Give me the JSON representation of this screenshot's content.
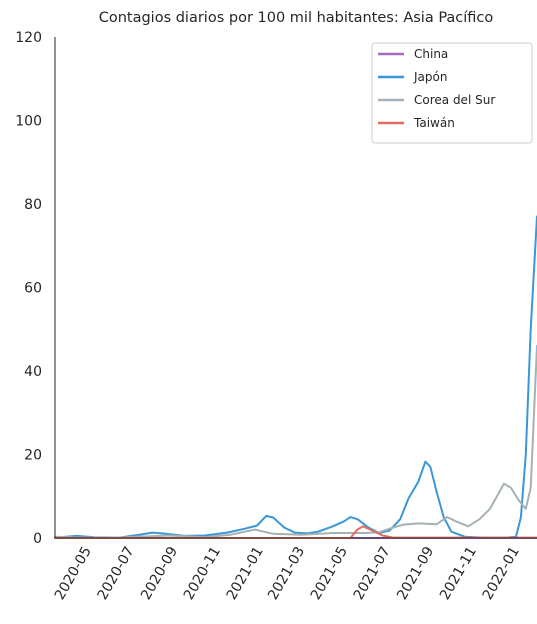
{
  "chart_data": {
    "type": "line",
    "title": "Contagios diarios por 100 mil habitantes: Asia Pacífico",
    "xlabel": "",
    "ylabel": "",
    "x_range": [
      "2020-03-15",
      "2022-01-31"
    ],
    "ylim": [
      0,
      120
    ],
    "y_ticks": [
      0,
      20,
      40,
      60,
      80,
      100,
      120
    ],
    "x_ticks": [
      "2020-05",
      "2020-07",
      "2020-09",
      "2020-11",
      "2021-01",
      "2021-03",
      "2021-05",
      "2021-07",
      "2021-09",
      "2021-11",
      "2022-01"
    ],
    "grid": false,
    "legend_position": "top-right",
    "series": [
      {
        "name": "China",
        "color": "#a66bbf",
        "points": [
          [
            "2020-03-15",
            0.0
          ],
          [
            "2022-01-31",
            0.0
          ]
        ]
      },
      {
        "name": "Japón",
        "color": "#3a97d9",
        "points": [
          [
            "2020-03-15",
            0.1
          ],
          [
            "2020-04-15",
            0.5
          ],
          [
            "2020-05-10",
            0.2
          ],
          [
            "2020-06-15",
            0.1
          ],
          [
            "2020-07-10",
            0.7
          ],
          [
            "2020-08-01",
            1.3
          ],
          [
            "2020-08-20",
            1.0
          ],
          [
            "2020-09-15",
            0.5
          ],
          [
            "2020-10-15",
            0.6
          ],
          [
            "2020-11-15",
            1.3
          ],
          [
            "2020-12-10",
            2.2
          ],
          [
            "2020-12-28",
            3.0
          ],
          [
            "2021-01-10",
            5.3
          ],
          [
            "2021-01-20",
            4.9
          ],
          [
            "2021-02-05",
            2.5
          ],
          [
            "2021-02-20",
            1.3
          ],
          [
            "2021-03-10",
            1.1
          ],
          [
            "2021-03-25",
            1.5
          ],
          [
            "2021-04-15",
            2.8
          ],
          [
            "2021-05-01",
            4.0
          ],
          [
            "2021-05-10",
            5.0
          ],
          [
            "2021-05-20",
            4.5
          ],
          [
            "2021-06-05",
            2.5
          ],
          [
            "2021-06-20",
            1.2
          ],
          [
            "2021-07-05",
            1.8
          ],
          [
            "2021-07-20",
            4.5
          ],
          [
            "2021-08-01",
            9.5
          ],
          [
            "2021-08-15",
            13.5
          ],
          [
            "2021-08-25",
            18.3
          ],
          [
            "2021-09-01",
            17.0
          ],
          [
            "2021-09-10",
            11.0
          ],
          [
            "2021-09-20",
            5.0
          ],
          [
            "2021-10-01",
            1.5
          ],
          [
            "2021-10-20",
            0.3
          ],
          [
            "2021-11-15",
            0.1
          ],
          [
            "2021-12-20",
            0.1
          ],
          [
            "2022-01-01",
            0.3
          ],
          [
            "2022-01-08",
            5.0
          ],
          [
            "2022-01-15",
            20.0
          ],
          [
            "2022-01-22",
            50.0
          ],
          [
            "2022-01-31",
            77.0
          ]
        ]
      },
      {
        "name": "Corea del Sur",
        "color": "#a5b1b4",
        "points": [
          [
            "2020-03-15",
            0.3
          ],
          [
            "2020-04-15",
            0.1
          ],
          [
            "2020-06-15",
            0.1
          ],
          [
            "2020-08-25",
            0.6
          ],
          [
            "2020-10-15",
            0.2
          ],
          [
            "2020-11-20",
            0.8
          ],
          [
            "2020-12-25",
            2.0
          ],
          [
            "2021-01-20",
            1.0
          ],
          [
            "2021-03-01",
            0.8
          ],
          [
            "2021-04-15",
            1.2
          ],
          [
            "2021-06-01",
            1.2
          ],
          [
            "2021-06-20",
            1.4
          ],
          [
            "2021-07-10",
            2.5
          ],
          [
            "2021-07-25",
            3.2
          ],
          [
            "2021-08-15",
            3.5
          ],
          [
            "2021-09-10",
            3.3
          ],
          [
            "2021-09-25",
            5.0
          ],
          [
            "2021-10-10",
            3.8
          ],
          [
            "2021-10-25",
            2.8
          ],
          [
            "2021-11-10",
            4.5
          ],
          [
            "2021-11-25",
            7.0
          ],
          [
            "2021-12-05",
            10.0
          ],
          [
            "2021-12-15",
            13.0
          ],
          [
            "2021-12-25",
            12.0
          ],
          [
            "2022-01-05",
            9.0
          ],
          [
            "2022-01-15",
            7.0
          ],
          [
            "2022-01-22",
            12.0
          ],
          [
            "2022-01-31",
            46.0
          ]
        ]
      },
      {
        "name": "Taiwán",
        "color": "#e26d5c",
        "points": [
          [
            "2020-03-15",
            0.0
          ],
          [
            "2021-05-10",
            0.0
          ],
          [
            "2021-05-20",
            2.0
          ],
          [
            "2021-05-28",
            2.8
          ],
          [
            "2021-06-10",
            1.8
          ],
          [
            "2021-06-25",
            0.6
          ],
          [
            "2021-07-10",
            0.1
          ],
          [
            "2022-01-31",
            0.1
          ]
        ]
      }
    ]
  }
}
